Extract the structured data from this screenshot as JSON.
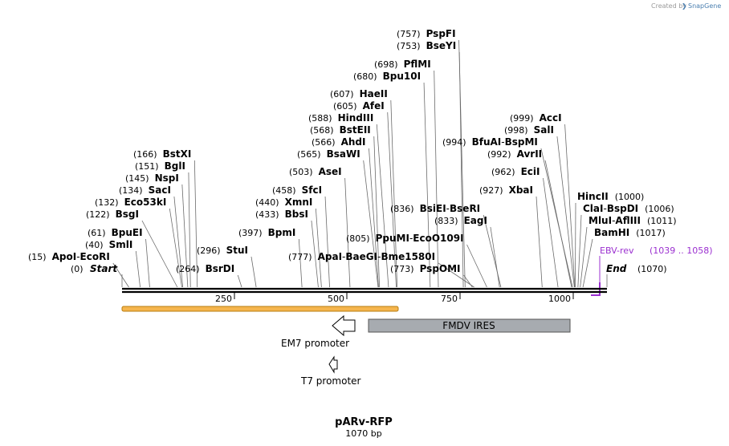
{
  "watermark": {
    "prefix": "Created by",
    "brand": "SnapGene"
  },
  "map": {
    "title": "pARv-RFP",
    "length_label": "1070 bp",
    "length_bp": 1070,
    "ticks": [
      "250",
      "500",
      "750",
      "1000"
    ],
    "start_label": {
      "pos": "(0)",
      "name": "Start"
    },
    "end_label": {
      "name": "End",
      "pos": "(1070)"
    }
  },
  "sites": [
    {
      "pos": "(15)",
      "names": [
        "ApoI",
        "EcoRI"
      ],
      "bp": 15
    },
    {
      "pos": "(40)",
      "names": [
        "SmlI"
      ],
      "bp": 40
    },
    {
      "pos": "(61)",
      "names": [
        "BpuEI"
      ],
      "bp": 61
    },
    {
      "pos": "(122)",
      "names": [
        "BsgI"
      ],
      "bp": 122
    },
    {
      "pos": "(132)",
      "names": [
        "Eco53kI"
      ],
      "bp": 132
    },
    {
      "pos": "(134)",
      "names": [
        "SacI"
      ],
      "bp": 134
    },
    {
      "pos": "(145)",
      "names": [
        "NspI"
      ],
      "bp": 145
    },
    {
      "pos": "(151)",
      "names": [
        "BglI"
      ],
      "bp": 151
    },
    {
      "pos": "(166)",
      "names": [
        "BstXI"
      ],
      "bp": 166
    },
    {
      "pos": "(264)",
      "names": [
        "BsrDI"
      ],
      "bp": 264
    },
    {
      "pos": "(296)",
      "names": [
        "StuI"
      ],
      "bp": 296
    },
    {
      "pos": "(397)",
      "names": [
        "BpmI"
      ],
      "bp": 397
    },
    {
      "pos": "(433)",
      "names": [
        "BbsI"
      ],
      "bp": 433
    },
    {
      "pos": "(440)",
      "names": [
        "XmnI"
      ],
      "bp": 440
    },
    {
      "pos": "(458)",
      "names": [
        "SfcI"
      ],
      "bp": 458
    },
    {
      "pos": "(503)",
      "names": [
        "AseI"
      ],
      "bp": 503
    },
    {
      "pos": "(565)",
      "names": [
        "BsaWI"
      ],
      "bp": 565
    },
    {
      "pos": "(566)",
      "names": [
        "AhdI"
      ],
      "bp": 566
    },
    {
      "pos": "(568)",
      "names": [
        "BstEII"
      ],
      "bp": 568
    },
    {
      "pos": "(588)",
      "names": [
        "HindIII"
      ],
      "bp": 588
    },
    {
      "pos": "(605)",
      "names": [
        "AfeI"
      ],
      "bp": 605
    },
    {
      "pos": "(607)",
      "names": [
        "HaeII"
      ],
      "bp": 607
    },
    {
      "pos": "(680)",
      "names": [
        "Bpu10I"
      ],
      "bp": 680
    },
    {
      "pos": "(698)",
      "names": [
        "PflMI"
      ],
      "bp": 698
    },
    {
      "pos": "(753)",
      "names": [
        "BseYI"
      ],
      "bp": 753
    },
    {
      "pos": "(757)",
      "names": [
        "PspFI"
      ],
      "bp": 757
    },
    {
      "pos": "(777)",
      "names": [
        "ApaI",
        "BaeGI",
        "Bme1580I"
      ],
      "bp": 777
    },
    {
      "pos": "(773)",
      "names": [
        "PspOMI"
      ],
      "bp": 773
    },
    {
      "pos": "(805)",
      "names": [
        "PpuMI",
        "EcoO109I"
      ],
      "bp": 805
    },
    {
      "pos": "(833)",
      "names": [
        "EagI"
      ],
      "bp": 833
    },
    {
      "pos": "(836)",
      "names": [
        "BsiEI",
        "BseRI"
      ],
      "bp": 836
    },
    {
      "pos": "(927)",
      "names": [
        "XbaI"
      ],
      "bp": 927
    },
    {
      "pos": "(962)",
      "names": [
        "EciI"
      ],
      "bp": 962
    },
    {
      "pos": "(992)",
      "names": [
        "AvrII"
      ],
      "bp": 992
    },
    {
      "pos": "(994)",
      "names": [
        "BfuAI",
        "BspMI"
      ],
      "bp": 994
    },
    {
      "pos": "(998)",
      "names": [
        "SalI"
      ],
      "bp": 998
    },
    {
      "pos": "(999)",
      "names": [
        "AccI"
      ],
      "bp": 999
    },
    {
      "pos": "(1000)",
      "names": [
        "HincII"
      ],
      "bp": 1000
    },
    {
      "pos": "(1006)",
      "names": [
        "ClaI",
        "BspDI"
      ],
      "bp": 1006
    },
    {
      "pos": "(1011)",
      "names": [
        "MluI",
        "AflIII"
      ],
      "bp": 1011
    },
    {
      "pos": "(1017)",
      "names": [
        "BamHI"
      ],
      "bp": 1017
    }
  ],
  "primer": {
    "name": "EBV-rev",
    "range": "(1039 .. 1058)",
    "color": "#9b30d0"
  },
  "features": [
    {
      "name": "FMDV IRES",
      "color": "#a7abb0"
    },
    {
      "name": "EM7 promoter"
    },
    {
      "name": "T7 promoter"
    }
  ],
  "colors": {
    "selection_fill": "#f5b54d",
    "selection_border": "#b77d10"
  }
}
